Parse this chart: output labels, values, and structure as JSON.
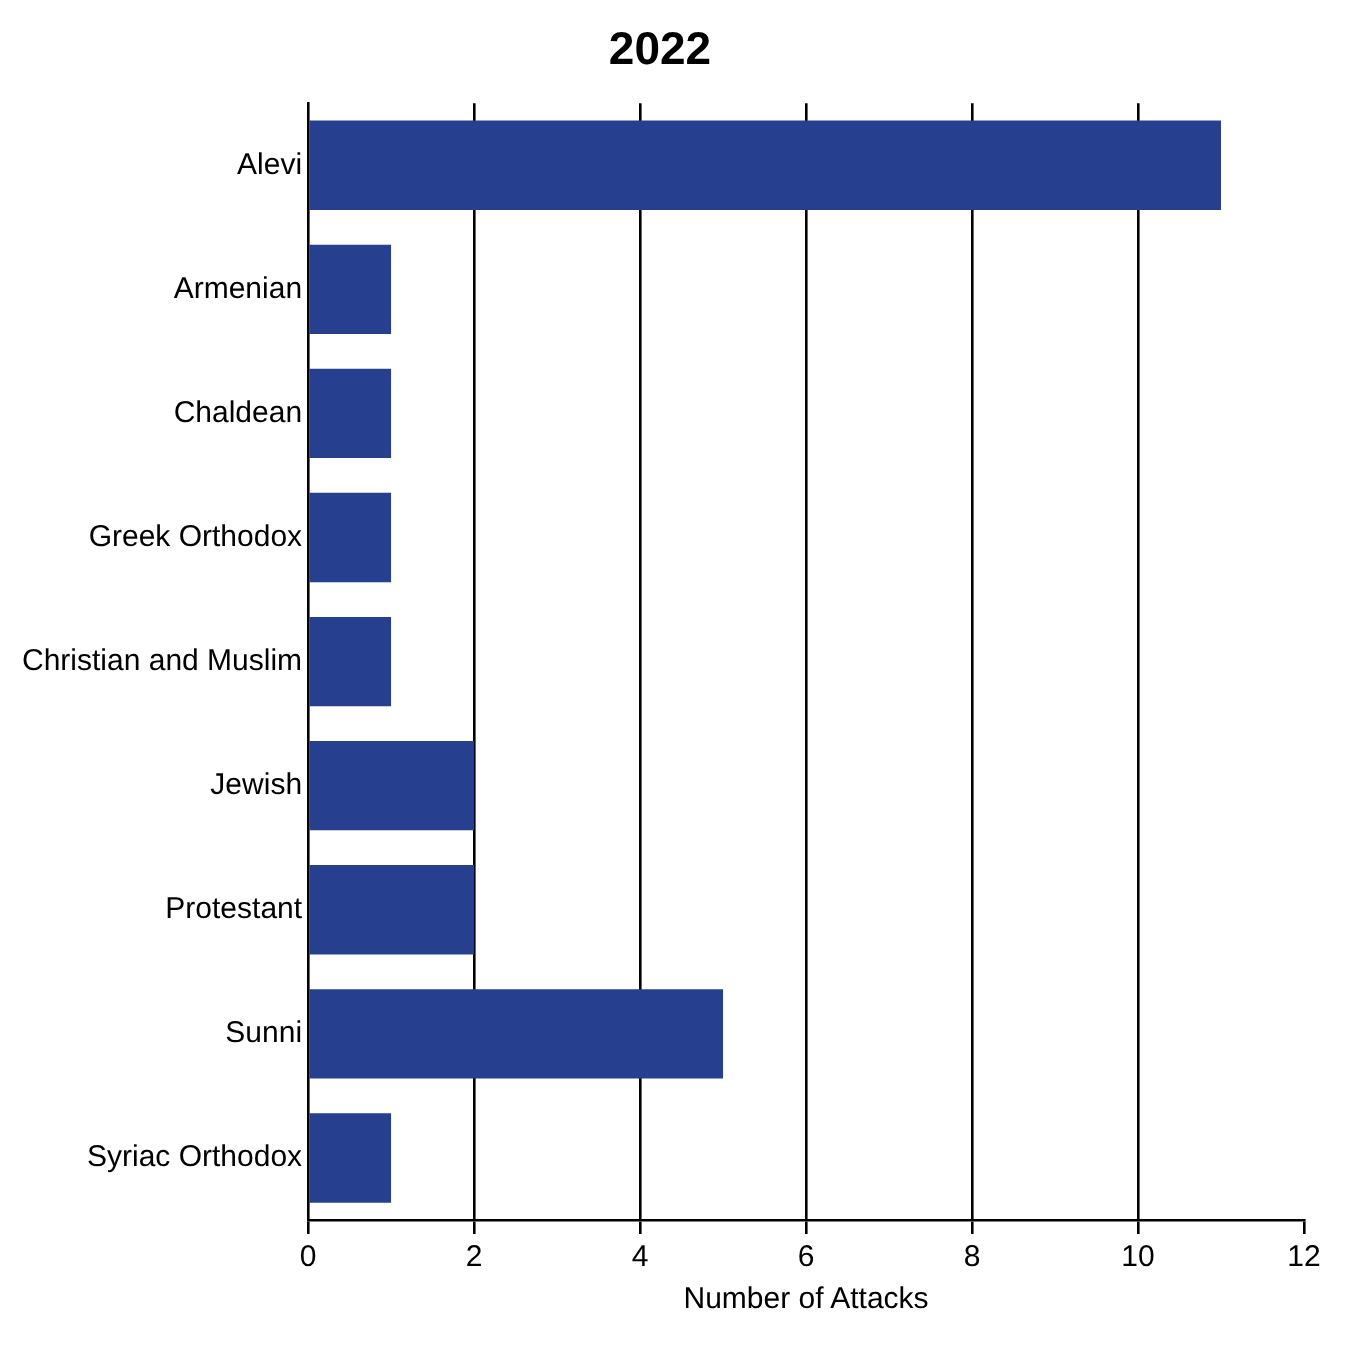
{
  "chart_data": {
    "type": "bar",
    "orientation": "horizontal",
    "title": "2022",
    "xlabel": "Number of Attacks",
    "categories": [
      "Alevi",
      "Armenian",
      "Chaldean",
      "Greek Orthodox",
      "Christian and Muslim",
      "Jewish",
      "Protestant",
      "Sunni",
      "Syriac Orthodox"
    ],
    "values": [
      11,
      1,
      1,
      1,
      1,
      2,
      2,
      5,
      1
    ],
    "color": "#26408f",
    "xlim": [
      0,
      12
    ],
    "xticks": [
      0,
      2,
      4,
      6,
      8,
      10,
      12
    ],
    "grid": "x",
    "legend": false
  }
}
